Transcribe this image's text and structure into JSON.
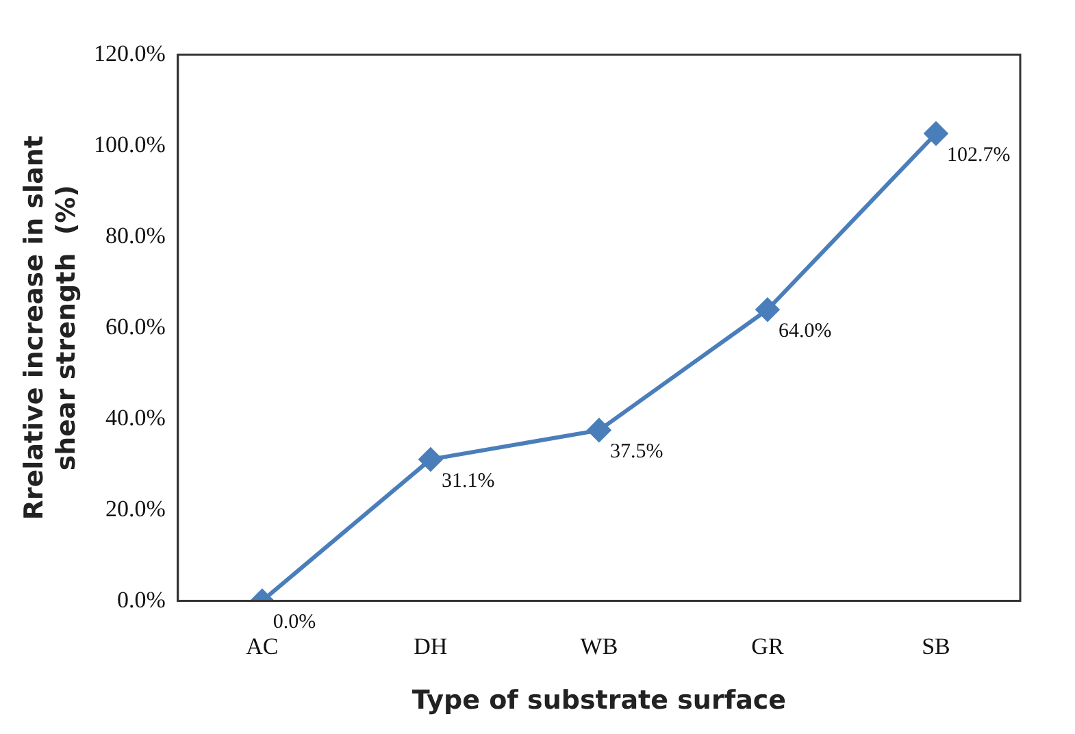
{
  "chart_data": {
    "type": "line",
    "xlabel": "Type of substrate surface",
    "ylabel": "Rrelative increase in slant shear strength  (%)",
    "categories": [
      "AC",
      "DH",
      "WB",
      "GR",
      "SB"
    ],
    "series": [
      {
        "color": "#4a7ebb",
        "values": [
          0,
          31.1,
          37.5,
          64.0,
          102.7
        ],
        "value_labels": [
          "0.0%",
          "31.1%",
          "37.5%",
          "64.0%",
          "102.7%"
        ]
      }
    ],
    "ylim": [
      0,
      120
    ],
    "yticks": [
      {
        "value": 0,
        "label": "0.0%"
      },
      {
        "value": 20,
        "label": "20.0%"
      },
      {
        "value": 40,
        "label": "40.0%"
      },
      {
        "value": 60,
        "label": "60.0%"
      },
      {
        "value": 80,
        "label": "80.0%"
      },
      {
        "value": 100,
        "label": "100.0%"
      },
      {
        "value": 120,
        "label": "120.0%"
      }
    ],
    "marker": "diamond",
    "line_style": "solid",
    "grid": false,
    "legend": false
  }
}
